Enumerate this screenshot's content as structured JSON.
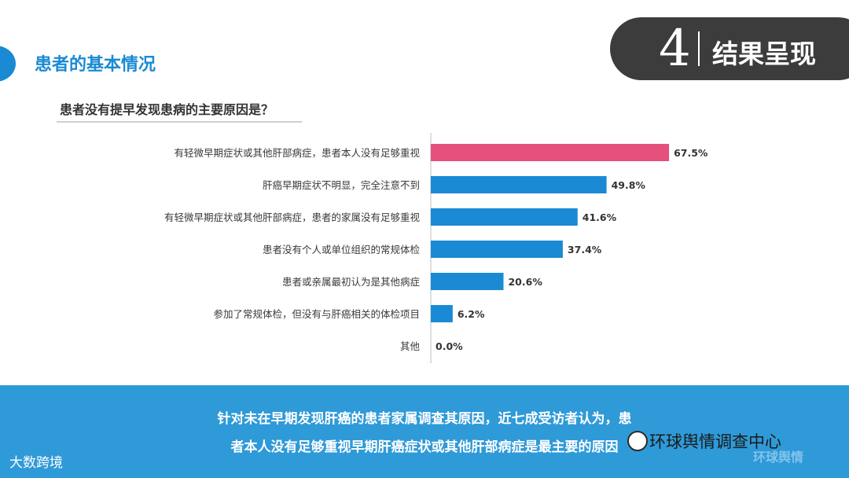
{
  "header": {
    "section_title": "患者的基本情况",
    "badge_number": "4",
    "badge_title": "结果呈现"
  },
  "question": "患者没有提早发现患病的主要原因是？",
  "colors": {
    "highlight": "#e5507c",
    "bar": "#1a8ad4",
    "accent": "#1a8ad4",
    "footer": "#2f9ad8"
  },
  "chart_data": {
    "type": "bar",
    "orientation": "horizontal",
    "categories": [
      "有轻微早期症状或其他肝部病症，患者本人没有足够重视",
      "肝癌早期症状不明显，完全注意不到",
      "有轻微早期症状或其他肝部病症，患者的家属没有足够重视",
      "患者没有个人或单位组织的常规体检",
      "患者或亲属最初认为是其他病症",
      "参加了常规体检，但没有与肝癌相关的体检项目",
      "其他"
    ],
    "values": [
      67.5,
      49.8,
      41.6,
      37.4,
      20.6,
      6.2,
      0.0
    ],
    "value_labels": [
      "67.5%",
      "49.8%",
      "41.6%",
      "37.4%",
      "20.6%",
      "6.2%",
      "0.0%"
    ],
    "highlight_index": 0,
    "xlim": [
      0,
      100
    ],
    "grid": false
  },
  "footer": {
    "line1": "针对未在早期发现肝癌的患者家属调查其原因，近七成受访者认为，患",
    "line2": "者本人没有足够重视早期肝癌症状或其他肝部病症是最主要的原因"
  },
  "watermarks": {
    "left": "大数跨境",
    "right": "环球舆情调查中心",
    "faint": "环球舆情"
  }
}
